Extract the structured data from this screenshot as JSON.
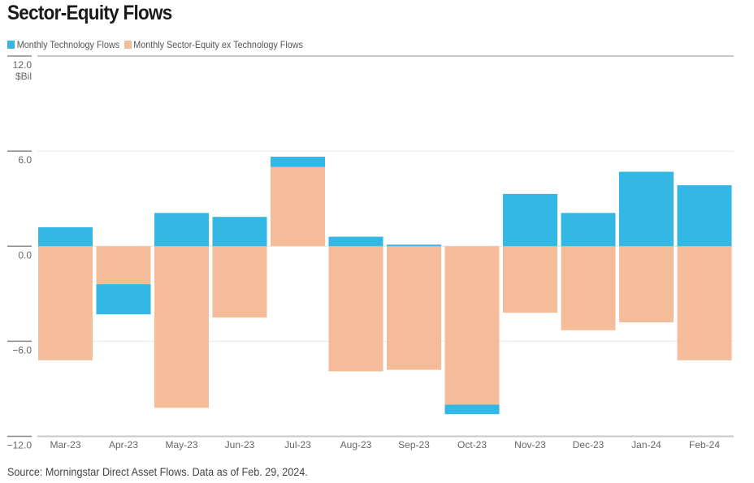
{
  "title": "Sector-Equity Flows",
  "source": "Source: Morningstar Direct Asset Flows. Data as of Feb. 29, 2024.",
  "colors": {
    "tech": "#33b8e6",
    "sector": "#f5bc99",
    "grid": "#e6e6e6",
    "axis": "#999999"
  },
  "chart_data": {
    "type": "bar",
    "stacked": true,
    "title": "Sector-Equity Flows",
    "ylabel": "$Bil",
    "ylim": [
      -12,
      12
    ],
    "yticks": [
      12,
      6,
      0,
      -6,
      -12
    ],
    "ytick_labels": [
      "12.0",
      "6.0",
      "0.0",
      "−6.0",
      "−12.0"
    ],
    "legend_position": "top-left",
    "categories": [
      "Mar-23",
      "Apr-23",
      "May-23",
      "Jun-23",
      "Jul-23",
      "Aug-23",
      "Sep-23",
      "Oct-23",
      "Nov-23",
      "Dec-23",
      "Jan-24",
      "Feb-24"
    ],
    "series": [
      {
        "name": "Monthly Sector-Equity ex Technology Flows",
        "values": [
          -7.2,
          -2.4,
          -10.2,
          -4.5,
          5.0,
          -7.9,
          -7.8,
          -10.0,
          -4.2,
          -5.3,
          -4.8,
          -7.2
        ]
      },
      {
        "name": "Monthly Technology Flows",
        "values": [
          1.2,
          -1.9,
          2.1,
          1.85,
          0.65,
          0.6,
          0.1,
          -0.6,
          3.3,
          2.1,
          4.7,
          3.85
        ]
      }
    ]
  }
}
